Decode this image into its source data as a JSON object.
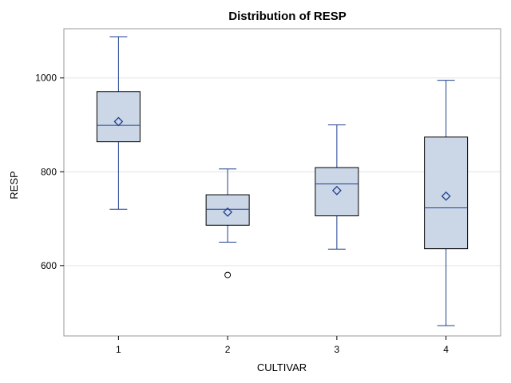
{
  "chart_data": {
    "type": "box",
    "title": "Distribution of RESP",
    "xlabel": "CULTIVAR",
    "ylabel": "RESP",
    "ylim": [
      450,
      1105
    ],
    "yticks": [
      600,
      800,
      1000
    ],
    "grid": true,
    "legend": "none",
    "colors": {
      "box_fill": "#cbd6e6",
      "box_stroke": "#000000",
      "whisker": "#1f3f8f",
      "median": "#1f3f8f",
      "mean_marker": "#1f3f8f",
      "outlier": "#000000",
      "grid": "#e3e3e3",
      "frame": "#9a9a9a"
    },
    "categories": [
      "1",
      "2",
      "3",
      "4"
    ],
    "boxes": [
      {
        "category": "1",
        "min": 720,
        "q1": 864,
        "median": 899,
        "q3": 971,
        "max": 1088,
        "mean": 907,
        "outliers": []
      },
      {
        "category": "2",
        "min": 650,
        "q1": 686,
        "median": 720,
        "q3": 751,
        "max": 806,
        "mean": 714,
        "outliers": [
          580
        ]
      },
      {
        "category": "3",
        "min": 635,
        "q1": 706,
        "median": 774,
        "q3": 809,
        "max": 900,
        "mean": 760,
        "outliers": []
      },
      {
        "category": "4",
        "min": 472,
        "q1": 636,
        "median": 723,
        "q3": 874,
        "max": 995,
        "mean": 748,
        "outliers": []
      }
    ]
  }
}
